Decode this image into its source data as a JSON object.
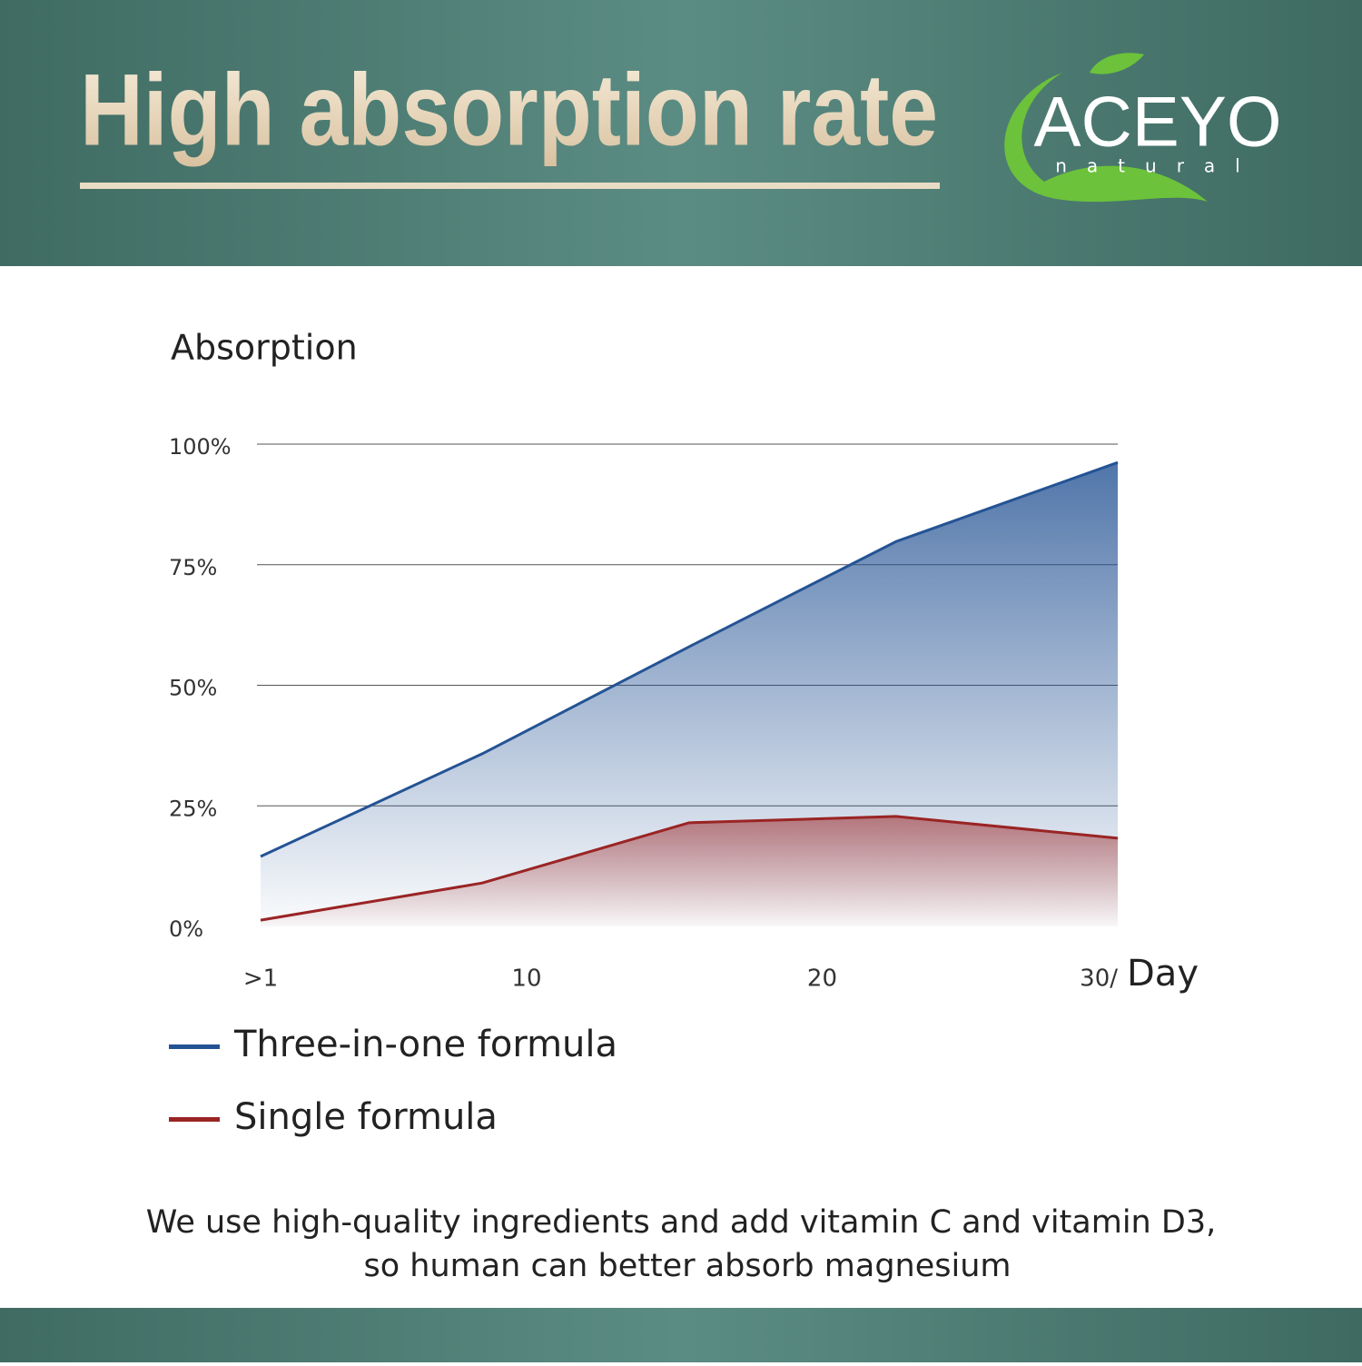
{
  "header": {
    "title": "High absorption rate",
    "logo": {
      "brand": "ACEYO",
      "tagline": "natural"
    }
  },
  "chart_data": {
    "type": "line",
    "y_label": "Absorption",
    "x_label": "Day",
    "x": [
      1,
      8.5,
      15.5,
      22.5,
      30
    ],
    "series": [
      {
        "name": "Three-in-one formula",
        "color": "#245394",
        "values": [
          14.5,
          35.8,
          58,
          79.8,
          96.2
        ]
      },
      {
        "name": "Single formula",
        "color": "#9a2424",
        "values": [
          1.3,
          9,
          21.5,
          22.8,
          18.3
        ]
      }
    ],
    "xlim": [
      1,
      30
    ],
    "xticks": [
      {
        "value": 1,
        "label": ">1"
      },
      10,
      20,
      {
        "value": 30,
        "label": "30/"
      }
    ],
    "ylim": [
      0,
      100
    ],
    "yticks": [
      {
        "value": 0,
        "label": "0%"
      },
      {
        "value": 25,
        "label": "25%"
      },
      {
        "value": 50,
        "label": "50%"
      },
      {
        "value": 75,
        "label": "75%"
      },
      {
        "value": 100,
        "label": "100%"
      }
    ],
    "grid": true,
    "area_fill": true
  },
  "caption": [
    "We use high-quality ingredients and add vitamin C and vitamin D3,",
    "so human can better absorb magnesium"
  ]
}
